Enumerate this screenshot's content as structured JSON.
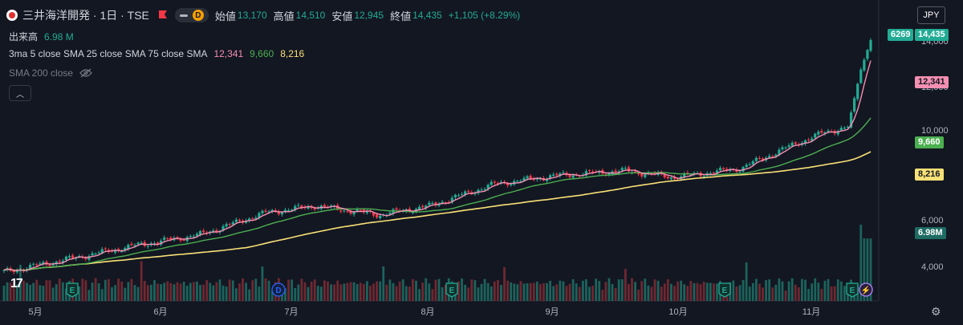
{
  "header": {
    "title": "三井海洋開発 · 1日 · TSE",
    "d_badge": "D",
    "ohlc": [
      {
        "label": "始値",
        "value": "13,170"
      },
      {
        "label": "高値",
        "value": "14,510"
      },
      {
        "label": "安値",
        "value": "12,945"
      },
      {
        "label": "終値",
        "value": "14,435"
      }
    ],
    "change": "+1,105 (+8.29%)"
  },
  "volume_legend": {
    "label": "出来高",
    "value": "6.98 M"
  },
  "sma_legend": {
    "label": "3ma 5 close SMA 25 close SMA 75 close SMA",
    "values": [
      "12,341",
      "9,660",
      "8,216"
    ]
  },
  "sma200_legend": {
    "label": "SMA 200 close"
  },
  "currency": "JPY",
  "price_axis": {
    "ticks": [
      "14,000",
      "12,000",
      "10,000",
      "6,000",
      "4,000"
    ],
    "price_tag_code": "6269",
    "price_tag_value": "14,435",
    "sma5_tag": "12,341",
    "sma25_tag": "9,660",
    "sma75_tag": "8,216",
    "volume_tag": "6.98M"
  },
  "time_axis": {
    "ticks": [
      "5月",
      "6月",
      "7月",
      "8月",
      "9月",
      "10月",
      "11月"
    ]
  },
  "event_markers": [
    {
      "type": "E",
      "month_index": 0.35
    },
    {
      "type": "D",
      "month_index": 2.1
    },
    {
      "type": "E",
      "month_index": 3.25
    },
    {
      "type": "E",
      "month_index": 5.35
    },
    {
      "type": "E",
      "month_index": 6.3
    },
    {
      "type": "⚡",
      "month_index": 6.45
    }
  ],
  "colors": {
    "up": "#22ab94",
    "down": "#f23645",
    "sma5": "#f48fb1",
    "sma25": "#4caf50",
    "sma75": "#f9e076",
    "background": "#131722",
    "axis_text": "#b2b5be"
  },
  "chart_data": {
    "type": "candlestick",
    "y_range": [
      3500,
      14800
    ],
    "price_series": [
      {
        "date_index": 0,
        "price": 3900
      },
      {
        "date_index": 20,
        "price": 4500
      },
      {
        "date_index": 40,
        "price": 5100
      },
      {
        "date_index": 60,
        "price": 5600
      },
      {
        "date_index": 80,
        "price": 6600
      },
      {
        "date_index": 95,
        "price": 6900
      },
      {
        "date_index": 115,
        "price": 6500
      },
      {
        "date_index": 130,
        "price": 6900
      },
      {
        "date_index": 150,
        "price": 7900
      },
      {
        "date_index": 170,
        "price": 8300
      },
      {
        "date_index": 190,
        "price": 8500
      },
      {
        "date_index": 205,
        "price": 8200
      },
      {
        "date_index": 225,
        "price": 8600
      },
      {
        "date_index": 240,
        "price": 9600
      },
      {
        "date_index": 250,
        "price": 10200
      },
      {
        "date_index": 258,
        "price": 10500
      },
      {
        "date_index": 262,
        "price": 13100
      },
      {
        "date_index": 265,
        "price": 14435
      }
    ],
    "volume_note": "recent sessions near 6.98M peak"
  }
}
